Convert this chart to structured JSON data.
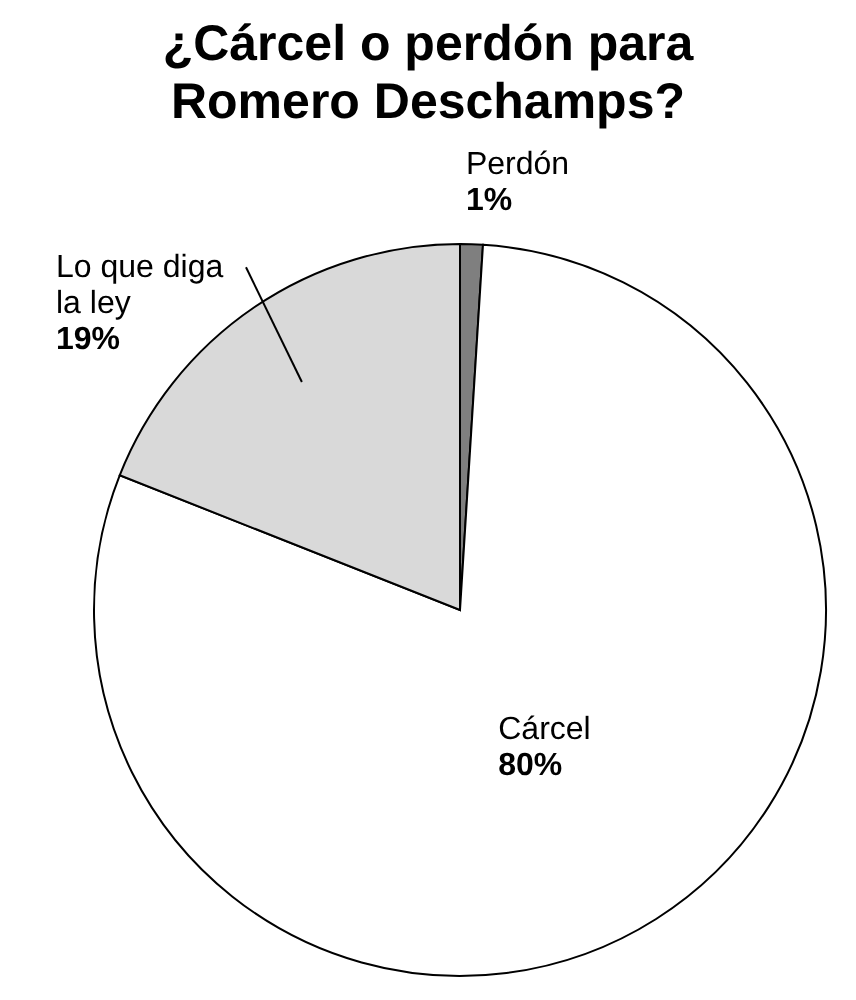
{
  "chart_data": {
    "type": "pie",
    "title": "¿Cárcel o perdón para Romero Deschamps?",
    "categories": [
      "Perdón",
      "Cárcel",
      "Lo que diga la ley"
    ],
    "values": [
      1,
      80,
      19
    ],
    "value_labels": [
      "1%",
      "80%",
      "19%"
    ],
    "colors": [
      "#7f7f7f",
      "#ffffff",
      "#d9d9d9"
    ]
  }
}
